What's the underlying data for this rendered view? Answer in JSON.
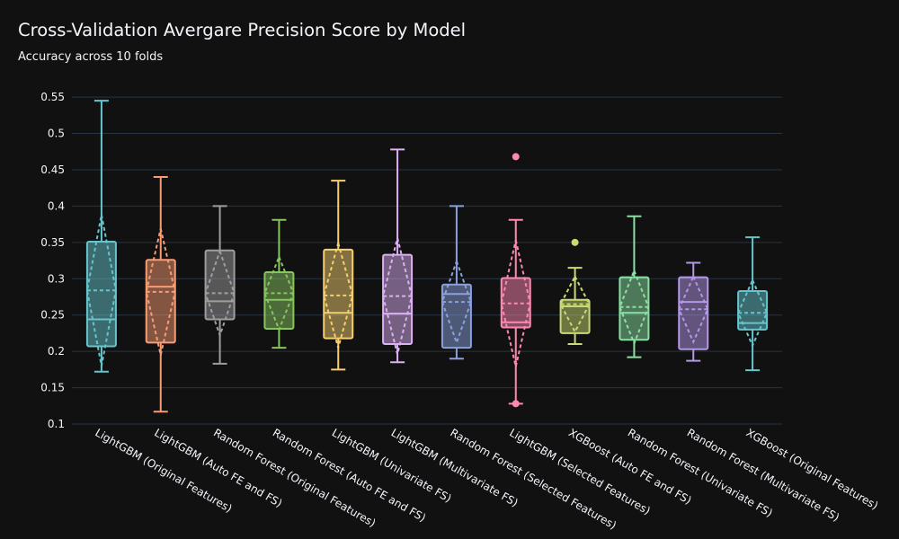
{
  "header": {
    "title": "Cross-Validation Avergare Precision Score by Model",
    "subtitle": "Accuracy across 10 folds"
  },
  "chart_data": {
    "type": "box",
    "title": "Cross-Validation Avergare Precision Score by Model",
    "subtitle": "Accuracy across 10 folds",
    "xlabel": "",
    "ylabel": "",
    "ylim": [
      0.1,
      0.56
    ],
    "yticks": [
      "0.1",
      "0.15",
      "0.2",
      "0.25",
      "0.3",
      "0.35",
      "0.4",
      "0.45",
      "0.5",
      "0.55"
    ],
    "grid": true,
    "background": "#111111",
    "show_mean_sd": true,
    "categories": [
      "LightGBM (Original Features)",
      "LightGBM (Auto FE and FS)",
      "Random Forest (Original Features)",
      "Random Forest (Auto FE and FS)",
      "LightGBM (Univariate FS)",
      "LightGBM (Multivariate FS)",
      "Random Forest (Selected Features)",
      "LightGBM (Selected Features)",
      "XGBoost (Auto FE and FS)",
      "Random Forest (Univariate FS)",
      "Random Forest (Multivariate FS)",
      "XGBoost (Original Features)"
    ],
    "series": [
      {
        "color": "#66c5cc",
        "min": 0.172,
        "q1": 0.207,
        "median": 0.244,
        "q3": 0.351,
        "max": 0.545,
        "mean": 0.284,
        "sd": 0.104,
        "outliers": []
      },
      {
        "color": "#f89c74",
        "min": 0.117,
        "q1": 0.212,
        "median": 0.289,
        "q3": 0.326,
        "max": 0.44,
        "mean": 0.282,
        "sd": 0.087,
        "outliers": []
      },
      {
        "color": "#9e9e9e",
        "min": 0.183,
        "q1": 0.244,
        "median": 0.269,
        "q3": 0.339,
        "max": 0.4,
        "mean": 0.28,
        "sd": 0.058,
        "outliers": []
      },
      {
        "color": "#87c55f",
        "min": 0.205,
        "q1": 0.231,
        "median": 0.271,
        "q3": 0.309,
        "max": 0.381,
        "mean": 0.28,
        "sd": 0.05,
        "outliers": []
      },
      {
        "color": "#f6cf71",
        "min": 0.175,
        "q1": 0.218,
        "median": 0.253,
        "q3": 0.34,
        "max": 0.435,
        "mean": 0.277,
        "sd": 0.072,
        "outliers": []
      },
      {
        "color": "#dcb0f2",
        "min": 0.185,
        "q1": 0.21,
        "median": 0.252,
        "q3": 0.333,
        "max": 0.478,
        "mean": 0.276,
        "sd": 0.08,
        "outliers": []
      },
      {
        "color": "#8ba0dd",
        "min": 0.19,
        "q1": 0.205,
        "median": 0.279,
        "q3": 0.292,
        "max": 0.4,
        "mean": 0.268,
        "sd": 0.056,
        "outliers": []
      },
      {
        "color": "#fe88b1",
        "min": 0.128,
        "q1": 0.233,
        "median": 0.24,
        "q3": 0.301,
        "max": 0.381,
        "mean": 0.266,
        "sd": 0.087,
        "outliers": [
          0.468,
          0.128
        ]
      },
      {
        "color": "#c9db74",
        "min": 0.21,
        "q1": 0.225,
        "median": 0.262,
        "q3": 0.271,
        "max": 0.315,
        "mean": 0.265,
        "sd": 0.038,
        "outliers": [
          0.35
        ]
      },
      {
        "color": "#8be0a4",
        "min": 0.192,
        "q1": 0.216,
        "median": 0.253,
        "q3": 0.302,
        "max": 0.386,
        "mean": 0.261,
        "sd": 0.05,
        "outliers": []
      },
      {
        "color": "#b497e7",
        "min": 0.187,
        "q1": 0.203,
        "median": 0.268,
        "q3": 0.302,
        "max": 0.322,
        "mean": 0.258,
        "sd": 0.045,
        "outliers": []
      },
      {
        "color": "#66c5cc",
        "min": 0.174,
        "q1": 0.23,
        "median": 0.239,
        "q3": 0.283,
        "max": 0.357,
        "mean": 0.253,
        "sd": 0.045,
        "outliers": []
      }
    ]
  }
}
